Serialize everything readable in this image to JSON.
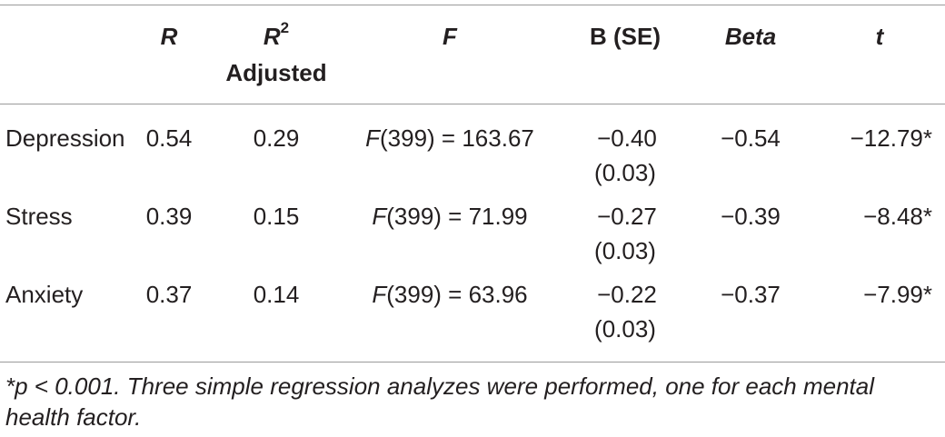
{
  "table": {
    "headers": {
      "r": "R",
      "r2_base": "R",
      "r2_sup": "2",
      "r2_sub": "Adjusted",
      "f": "F",
      "b": "B (SE)",
      "beta": "Beta",
      "t": "t"
    },
    "rows": [
      {
        "label": "Depression",
        "r": "0.54",
        "r2": "0.29",
        "f_italic": "F",
        "f_rest": "(399) = 163.67",
        "b": "−0.40",
        "se": "(0.03)",
        "beta": "−0.54",
        "t": "−12.79*"
      },
      {
        "label": "Stress",
        "r": "0.39",
        "r2": "0.15",
        "f_italic": "F",
        "f_rest": "(399) = 71.99",
        "b": "−0.27",
        "se": "(0.03)",
        "beta": "−0.39",
        "t": "−8.48*"
      },
      {
        "label": "Anxiety",
        "r": "0.37",
        "r2": "0.14",
        "f_italic": "F",
        "f_rest": "(399) = 63.96",
        "b": "−0.22",
        "se": "(0.03)",
        "beta": "−0.37",
        "t": "−7.99*"
      }
    ],
    "footnote": "*p < 0.001. Three simple regression analyzes were performed, one for each mental health factor."
  }
}
